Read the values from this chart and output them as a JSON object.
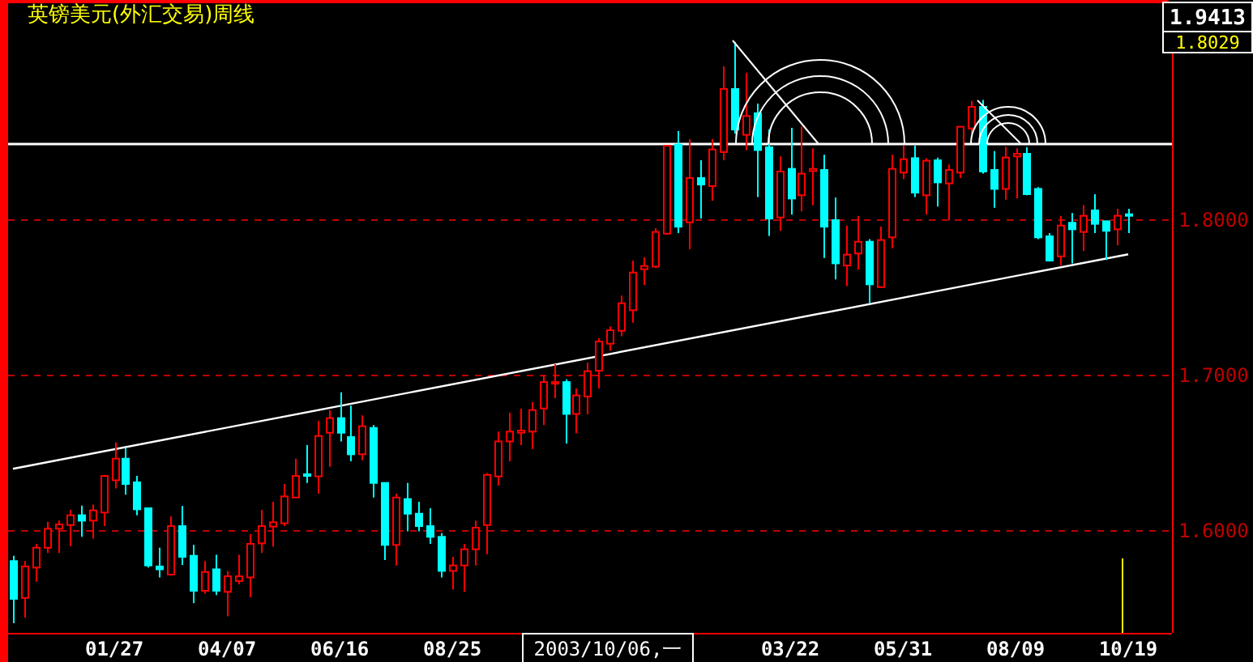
{
  "chart_data": {
    "type": "candlestick",
    "title": "英镑美元(外汇交易)周线",
    "categories": [
      null,
      null,
      null,
      null,
      null,
      null,
      null,
      null,
      null,
      "01/27",
      null,
      null,
      null,
      null,
      null,
      null,
      null,
      null,
      null,
      "04/07",
      null,
      null,
      null,
      null,
      null,
      null,
      null,
      null,
      null,
      "06/16",
      null,
      null,
      null,
      null,
      null,
      null,
      null,
      null,
      null,
      "08/25",
      null,
      null,
      null,
      null,
      null,
      null,
      null,
      null,
      null,
      null,
      null,
      null,
      null,
      null,
      null,
      null,
      null,
      null,
      null,
      null,
      null,
      null,
      null,
      null,
      null,
      null,
      null,
      null,
      null,
      "03/22",
      null,
      null,
      null,
      null,
      null,
      null,
      null,
      null,
      null,
      "05/31",
      null,
      null,
      null,
      null,
      null,
      null,
      null,
      null,
      null,
      "08/09",
      null,
      null,
      null,
      null,
      null,
      null,
      null,
      null,
      null,
      "10/19"
    ],
    "ohlc": [
      [
        1.5806,
        1.584,
        1.5406,
        1.5563
      ],
      [
        1.5569,
        1.5806,
        1.5441,
        1.5771
      ],
      [
        1.5764,
        1.5917,
        1.5674,
        1.5892
      ],
      [
        1.5892,
        1.6059,
        1.5858,
        1.6014
      ],
      [
        1.6014,
        1.6066,
        1.5858,
        1.6042
      ],
      [
        1.6038,
        1.6135,
        1.5903,
        1.6101
      ],
      [
        1.6101,
        1.6163,
        1.5962,
        1.6066
      ],
      [
        1.6066,
        1.617,
        1.5951,
        1.6132
      ],
      [
        1.6118,
        1.6361,
        1.6031,
        1.6354
      ],
      [
        1.6326,
        1.6569,
        1.6274,
        1.6465
      ],
      [
        1.6465,
        1.6535,
        1.6233,
        1.6302
      ],
      [
        1.6313,
        1.6354,
        1.6101,
        1.6139
      ],
      [
        1.6146,
        1.6146,
        1.5764,
        1.5778
      ],
      [
        1.5771,
        1.5892,
        1.5701,
        1.5753
      ],
      [
        1.5719,
        1.6094,
        1.5712,
        1.6031
      ],
      [
        1.6031,
        1.616,
        1.5781,
        1.5833
      ],
      [
        1.584,
        1.591,
        1.5535,
        1.5615
      ],
      [
        1.5615,
        1.5806,
        1.5597,
        1.5736
      ],
      [
        1.5753,
        1.5847,
        1.5587,
        1.5615
      ],
      [
        1.5608,
        1.5743,
        1.5451,
        1.5708
      ],
      [
        1.5677,
        1.5847,
        1.5656,
        1.5708
      ],
      [
        1.5701,
        1.5979,
        1.5573,
        1.5917
      ],
      [
        1.592,
        1.6135,
        1.5858,
        1.6031
      ],
      [
        1.6028,
        1.6188,
        1.5899,
        1.6056
      ],
      [
        1.6049,
        1.6302,
        1.6031,
        1.6222
      ],
      [
        1.6215,
        1.6465,
        1.6215,
        1.6354
      ],
      [
        1.6365,
        1.6552,
        1.6309,
        1.6354
      ],
      [
        1.6351,
        1.6708,
        1.624,
        1.6611
      ],
      [
        1.6632,
        1.6778,
        1.6413,
        1.6726
      ],
      [
        1.6726,
        1.6892,
        1.6576,
        1.6632
      ],
      [
        1.6604,
        1.6806,
        1.6448,
        1.6493
      ],
      [
        1.6493,
        1.6743,
        1.6455,
        1.6674
      ],
      [
        1.6663,
        1.6681,
        1.6215,
        1.6309
      ],
      [
        1.6309,
        1.6309,
        1.5813,
        1.591
      ],
      [
        1.591,
        1.624,
        1.5778,
        1.6215
      ],
      [
        1.6205,
        1.6309,
        1.5997,
        1.6111
      ],
      [
        1.6111,
        1.6188,
        1.5997,
        1.6031
      ],
      [
        1.6031,
        1.6146,
        1.5917,
        1.5962
      ],
      [
        1.5962,
        1.5986,
        1.5701,
        1.5743
      ],
      [
        1.5743,
        1.5833,
        1.5622,
        1.5778
      ],
      [
        1.5778,
        1.5917,
        1.5608,
        1.5882
      ],
      [
        1.5882,
        1.6066,
        1.5778,
        1.6021
      ],
      [
        1.6038,
        1.6372,
        1.5851,
        1.6361
      ],
      [
        1.6351,
        1.6639,
        1.6292,
        1.6576
      ],
      [
        1.6576,
        1.676,
        1.6448,
        1.6639
      ],
      [
        1.6632,
        1.6785,
        1.6552,
        1.6646
      ],
      [
        1.6639,
        1.683,
        1.6528,
        1.6778
      ],
      [
        1.6788,
        1.6997,
        1.6681,
        1.6958
      ],
      [
        1.6954,
        1.7073,
        1.6854,
        1.6958
      ],
      [
        1.6958,
        1.6976,
        1.6563,
        1.6753
      ],
      [
        1.6753,
        1.6917,
        1.6628,
        1.6872
      ],
      [
        1.6865,
        1.7083,
        1.675,
        1.7028
      ],
      [
        1.7031,
        1.724,
        1.6917,
        1.7219
      ],
      [
        1.7205,
        1.7316,
        1.716,
        1.7292
      ],
      [
        1.7288,
        1.7514,
        1.7253,
        1.7465
      ],
      [
        1.742,
        1.774,
        1.734,
        1.7663
      ],
      [
        1.7684,
        1.776,
        1.7583,
        1.7705
      ],
      [
        1.7701,
        1.7948,
        1.7691,
        1.7924
      ],
      [
        1.7913,
        1.8479,
        1.7906,
        1.8479
      ],
      [
        1.8486,
        1.8573,
        1.7917,
        1.7958
      ],
      [
        1.7986,
        1.8521,
        1.7813,
        1.8271
      ],
      [
        1.8271,
        1.8385,
        1.801,
        1.8229
      ],
      [
        1.8219,
        1.8521,
        1.8125,
        1.8455
      ],
      [
        1.8438,
        1.899,
        1.8385,
        1.8844
      ],
      [
        1.8844,
        1.9146,
        1.8556,
        1.8583
      ],
      [
        1.8549,
        1.8948,
        1.8451,
        1.867
      ],
      [
        1.8688,
        1.875,
        1.8149,
        1.8451
      ],
      [
        1.8469,
        1.8583,
        1.7899,
        1.801
      ],
      [
        1.8017,
        1.841,
        1.7931,
        1.8313
      ],
      [
        1.833,
        1.8594,
        1.8035,
        1.8139
      ],
      [
        1.816,
        1.8601,
        1.8056,
        1.8299
      ],
      [
        1.8316,
        1.8462,
        1.8097,
        1.833
      ],
      [
        1.8323,
        1.842,
        1.7757,
        1.7958
      ],
      [
        1.8,
        1.8146,
        1.7618,
        1.7722
      ],
      [
        1.7708,
        1.7965,
        1.7576,
        1.7778
      ],
      [
        1.7785,
        1.8028,
        1.7681,
        1.7861
      ],
      [
        1.7861,
        1.7878,
        1.7465,
        1.7587
      ],
      [
        1.7569,
        1.7958,
        1.7569,
        1.7872
      ],
      [
        1.7889,
        1.842,
        1.7819,
        1.833
      ],
      [
        1.8306,
        1.8479,
        1.8264,
        1.8392
      ],
      [
        1.8399,
        1.8479,
        1.8149,
        1.8177
      ],
      [
        1.816,
        1.8399,
        1.8035,
        1.8382
      ],
      [
        1.8385,
        1.8403,
        1.8087,
        1.8243
      ],
      [
        1.8236,
        1.8358,
        1.8,
        1.8323
      ],
      [
        1.8306,
        1.8601,
        1.8271,
        1.8601
      ],
      [
        1.859,
        1.8767,
        1.8556,
        1.8729
      ],
      [
        1.8729,
        1.8774,
        1.8299,
        1.8313
      ],
      [
        1.8323,
        1.8444,
        1.808,
        1.8201
      ],
      [
        1.8201,
        1.8472,
        1.8132,
        1.8403
      ],
      [
        1.841,
        1.8462,
        1.8139,
        1.8427
      ],
      [
        1.8427,
        1.8469,
        1.816,
        1.8167
      ],
      [
        1.8201,
        1.8212,
        1.7878,
        1.7889
      ],
      [
        1.7896,
        1.7917,
        1.7733,
        1.774
      ],
      [
        1.7767,
        1.8028,
        1.7708,
        1.7965
      ],
      [
        1.7983,
        1.8045,
        1.7722,
        1.7941
      ],
      [
        1.7924,
        1.8097,
        1.7802,
        1.8028
      ],
      [
        1.8063,
        1.8167,
        1.7917,
        1.7976
      ],
      [
        1.7993,
        1.7993,
        1.7743,
        1.7931
      ],
      [
        1.7941,
        1.8073,
        1.7837,
        1.8028
      ],
      [
        1.8038,
        1.8073,
        1.7917,
        1.8029
      ]
    ],
    "colors": [
      "#00ffff",
      "#ff0000",
      "#ff0000",
      "#ff0000",
      "#ff0000",
      "#ff0000",
      "#00ffff",
      "#ff0000",
      "#ff0000",
      "#ff0000",
      "#00ffff",
      "#00ffff",
      "#00ffff",
      "#00ffff",
      "#ff0000",
      "#00ffff",
      "#00ffff",
      "#ff0000",
      "#00ffff",
      "#ff0000",
      "#ff0000",
      "#ff0000",
      "#ff0000",
      "#ff0000",
      "#ff0000",
      "#ff0000",
      "#00ffff",
      "#ff0000",
      "#ff0000",
      "#00ffff",
      "#00ffff",
      "#ff0000",
      "#00ffff",
      "#00ffff",
      "#ff0000",
      "#00ffff",
      "#00ffff",
      "#00ffff",
      "#00ffff",
      "#ff0000",
      "#ff0000",
      "#ff0000",
      "#ff0000",
      "#ff0000",
      "#ff0000",
      "#ff0000",
      "#ff0000",
      "#ff0000",
      "#ff0000",
      "#00ffff",
      "#ff0000",
      "#ff0000",
      "#ff0000",
      "#ff0000",
      "#ff0000",
      "#ff0000",
      "#ff0000",
      "#ff0000",
      "#ff0000",
      "#00ffff",
      "#ff0000",
      "#00ffff",
      "#ff0000",
      "#ff0000",
      "#00ffff",
      "#ff0000",
      "#00ffff",
      "#00ffff",
      "#ff0000",
      "#00ffff",
      "#ff0000",
      "#ff0000",
      "#00ffff",
      "#00ffff",
      "#ff0000",
      "#ff0000",
      "#00ffff",
      "#ff0000",
      "#ff0000",
      "#ff0000",
      "#00ffff",
      "#ff0000",
      "#00ffff",
      "#ff0000",
      "#ff0000",
      "#ff0000",
      "#00ffff",
      "#00ffff",
      "#ff0000",
      "#ff0000",
      "#00ffff",
      "#00ffff",
      "#00ffff",
      "#ff0000",
      "#00ffff",
      "#ff0000",
      "#00ffff",
      "#00ffff",
      "#ff0000",
      "#00ffff"
    ],
    "series": [
      {
        "type": "line",
        "values": [
          1.64,
          null,
          null,
          null,
          null,
          null,
          null,
          null,
          null,
          null,
          null,
          null,
          null,
          null,
          null,
          null,
          null,
          null,
          null,
          null,
          null,
          null,
          null,
          null,
          null,
          null,
          null,
          null,
          null,
          null,
          null,
          null,
          null,
          null,
          null,
          null,
          null,
          null,
          null,
          null,
          null,
          null,
          null,
          null,
          null,
          null,
          null,
          null,
          null,
          null,
          null,
          null,
          null,
          null,
          null,
          null,
          null,
          null,
          null,
          null,
          null,
          null,
          null,
          null,
          null,
          null,
          null,
          null,
          null,
          null,
          null,
          null,
          null,
          null,
          null,
          null,
          null,
          null,
          null,
          null,
          null,
          null,
          null,
          null,
          null,
          null,
          null,
          null,
          null,
          null,
          null,
          null,
          null,
          null,
          null,
          null,
          null,
          null,
          null,
          1.778
        ],
        "color": "#ffffff"
      }
    ],
    "ylim": [
      1.5344,
      1.9413
    ],
    "yticks": [
      {
        "value": 1.6,
        "label": "1.6000"
      },
      {
        "value": 1.7,
        "label": "1.7000"
      },
      {
        "value": 1.8,
        "label": "1.8000"
      },
      {
        "value": 1.9413,
        "label": "1.9413"
      }
    ],
    "grid": "y",
    "ref_lines": [
      {
        "axis": "y",
        "value": 1.849,
        "color": "#ffffff"
      }
    ],
    "annotations": [
      "2003/10/06,一",
      "1.8029"
    ]
  }
}
